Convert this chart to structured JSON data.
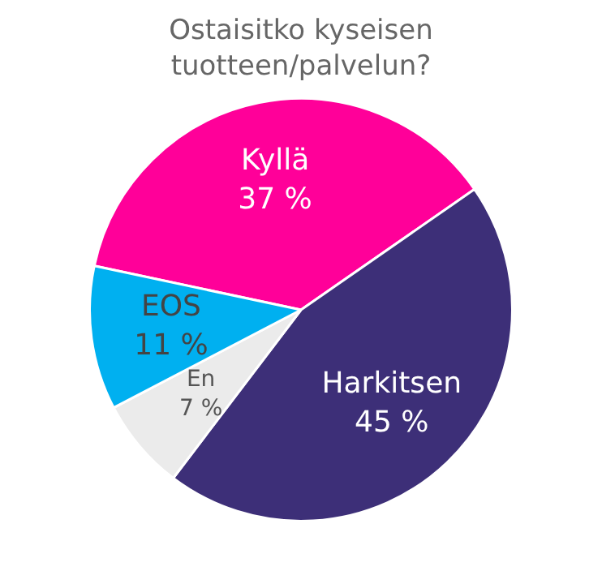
{
  "chart_data": {
    "type": "pie",
    "title": "Ostaisitko kyseisen tuotteen/palvelun?",
    "categories": [
      "Kyllä",
      "Harkitsen",
      "En",
      "EOS"
    ],
    "values": [
      37,
      45,
      7,
      11
    ],
    "colors": [
      "#ff0099",
      "#3d2f78",
      "#ebebeb",
      "#00b0f0"
    ],
    "value_labels": [
      "37 %",
      "45 %",
      "7 %",
      "11 %"
    ],
    "legend": false
  }
}
